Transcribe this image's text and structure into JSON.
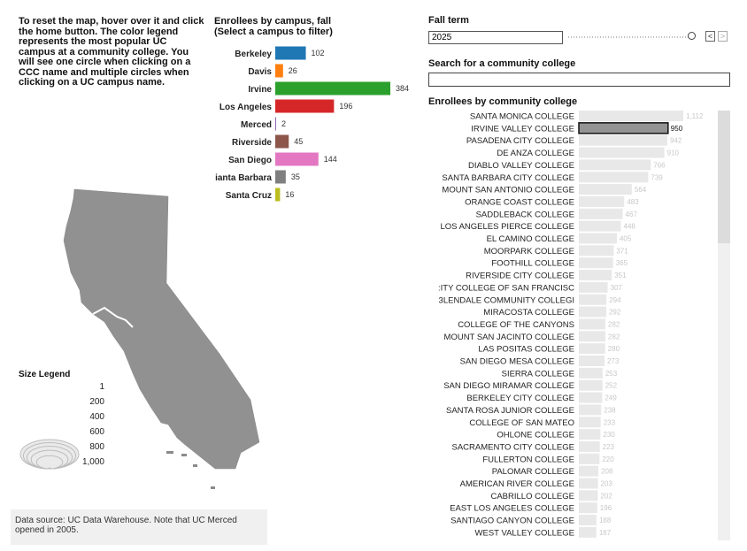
{
  "instructions": "To reset the map, hover over it and click the home button. The color legend represents the most popular UC campus at a community college. You will see one circle when clicking on a CCC name and multiple circles when clicking on a UC campus name.",
  "campus_chart_title_line1": "Enrollees by campus, fall",
  "campus_chart_title_line2": "(Select a campus to filter)",
  "fall_term": {
    "label": "Fall term",
    "value": "2025",
    "prev": "<",
    "next": ">"
  },
  "search": {
    "label": "Search for a community college",
    "value": ""
  },
  "cc_chart_title": "Enrollees by community college",
  "size_legend": {
    "title": "Size Legend",
    "items": [
      {
        "label": "1",
        "value": 1
      },
      {
        "label": "200",
        "value": 200
      },
      {
        "label": "400",
        "value": 400
      },
      {
        "label": "600",
        "value": 600
      },
      {
        "label": "800",
        "value": 800
      },
      {
        "label": "1,000",
        "value": 1000
      }
    ]
  },
  "data_source": "Data source: UC Data Warehouse. Note that UC Merced opened in 2005.",
  "chart_data": [
    {
      "type": "bar",
      "orientation": "horizontal",
      "categories": [
        "Berkeley",
        "Davis",
        "Irvine",
        "Los Angeles",
        "Merced",
        "Riverside",
        "San Diego",
        "Santa Barbara",
        "Santa Cruz"
      ],
      "category_labels": [
        "Berkeley",
        "Davis",
        "Irvine",
        "Los Angeles",
        "Merced",
        "Riverside",
        "San Diego",
        "ianta Barbara",
        "Santa Cruz"
      ],
      "values": [
        102,
        26,
        384,
        196,
        2,
        45,
        144,
        35,
        16
      ],
      "colors": [
        "#1f77b4",
        "#ff7f0e",
        "#2ca02c",
        "#d62728",
        "#9467bd",
        "#8c564b",
        "#e377c2",
        "#7f7f7f",
        "#bcbd22"
      ],
      "value_labels": [
        "102",
        "26",
        "384",
        "196",
        "2",
        "45",
        "144",
        "35",
        "16"
      ]
    },
    {
      "type": "bar",
      "orientation": "horizontal",
      "selected": "IRVINE VALLEY COLLEGE",
      "categories": [
        "SANTA MONICA COLLEGE",
        "IRVINE VALLEY COLLEGE",
        "PASADENA CITY COLLEGE",
        "DE ANZA COLLEGE",
        "DIABLO VALLEY COLLEGE",
        "SANTA BARBARA CITY COLLEGE",
        "MOUNT SAN ANTONIO COLLEGE",
        "ORANGE COAST COLLEGE",
        "SADDLEBACK COLLEGE",
        "LOS ANGELES PIERCE COLLEGE",
        "EL CAMINO COLLEGE",
        "MOORPARK COLLEGE",
        "FOOTHILL COLLEGE",
        "RIVERSIDE CITY COLLEGE",
        "CITY COLLEGE OF SAN FRANCISCO",
        "GLENDALE COMMUNITY COLLEGE",
        "MIRACOSTA COLLEGE",
        "COLLEGE OF THE CANYONS",
        "MOUNT SAN JACINTO COLLEGE",
        "LAS POSITAS COLLEGE",
        "SAN DIEGO MESA COLLEGE",
        "SIERRA COLLEGE",
        "SAN DIEGO MIRAMAR COLLEGE",
        "BERKELEY CITY COLLEGE",
        "SANTA ROSA JUNIOR COLLEGE",
        "COLLEGE OF SAN MATEO",
        "OHLONE COLLEGE",
        "SACRAMENTO CITY COLLEGE",
        "FULLERTON COLLEGE",
        "PALOMAR COLLEGE",
        "AMERICAN RIVER COLLEGE",
        "CABRILLO COLLEGE",
        "EAST LOS ANGELES COLLEGE",
        "SANTIAGO CANYON COLLEGE",
        "WEST VALLEY COLLEGE"
      ],
      "category_labels": [
        "SANTA MONICA COLLEGE",
        "IRVINE VALLEY COLLEGE",
        "PASADENA CITY COLLEGE",
        "DE ANZA COLLEGE",
        "DIABLO VALLEY COLLEGE",
        "SANTA BARBARA CITY COLLEGE",
        "MOUNT SAN ANTONIO COLLEGE",
        "ORANGE COAST COLLEGE",
        "SADDLEBACK COLLEGE",
        "LOS ANGELES PIERCE COLLEGE",
        "EL CAMINO COLLEGE",
        "MOORPARK COLLEGE",
        "FOOTHILL COLLEGE",
        "RIVERSIDE CITY COLLEGE",
        ":ITY COLLEGE OF SAN FRANCISC",
        "3LENDALE COMMUNITY COLLEGI",
        "MIRACOSTA COLLEGE",
        "COLLEGE OF THE CANYONS",
        "MOUNT SAN JACINTO COLLEGE",
        "LAS POSITAS COLLEGE",
        "SAN DIEGO MESA COLLEGE",
        "SIERRA COLLEGE",
        "SAN DIEGO MIRAMAR COLLEGE",
        "BERKELEY CITY COLLEGE",
        "SANTA ROSA JUNIOR COLLEGE",
        "COLLEGE OF SAN MATEO",
        "OHLONE COLLEGE",
        "SACRAMENTO CITY COLLEGE",
        "FULLERTON COLLEGE",
        "PALOMAR COLLEGE",
        "AMERICAN RIVER COLLEGE",
        "CABRILLO COLLEGE",
        "EAST LOS ANGELES COLLEGE",
        "SANTIAGO CANYON COLLEGE",
        "WEST VALLEY COLLEGE"
      ],
      "values": [
        1112,
        950,
        942,
        910,
        766,
        739,
        564,
        483,
        467,
        448,
        405,
        371,
        365,
        351,
        307,
        294,
        292,
        282,
        282,
        280,
        273,
        253,
        252,
        249,
        238,
        233,
        230,
        223,
        220,
        208,
        203,
        202,
        196,
        188,
        187
      ],
      "value_labels": [
        "1,112",
        "950",
        "942",
        "910",
        "766",
        "739",
        "564",
        "483",
        "467",
        "448",
        "405",
        "371",
        "365",
        "351",
        "307",
        "294",
        "292",
        "282",
        "282",
        "280",
        "273",
        "253",
        "252",
        "249",
        "238",
        "233",
        "230",
        "223",
        "220",
        "208",
        "203",
        "202",
        "196",
        "188",
        "187"
      ],
      "bar_color": "#e8e8e8",
      "selected_color": "#939393"
    }
  ]
}
